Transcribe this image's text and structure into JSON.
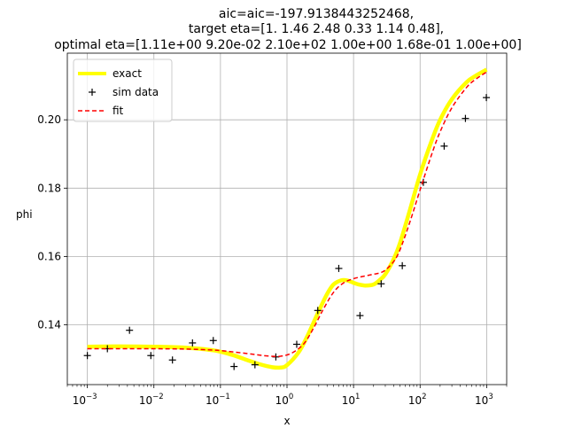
{
  "chart_data": {
    "type": "line",
    "title_lines": [
      "aic=aic=-197.9138443252468,",
      "target eta=[1.   1.46 2.48 0.33 1.14 0.48],",
      "optimal eta=[1.11e+00 9.20e-02 2.10e+02 1.00e+00 1.68e-01 1.00e+00]"
    ],
    "xlabel": "x",
    "ylabel": "phi",
    "x_scale": "log",
    "xlim": [
      0.0005,
      2000
    ],
    "ylim": [
      0.1225,
      0.2195
    ],
    "grid": true,
    "legend_position": "upper-left",
    "x_ticks": [
      {
        "value": 0.001,
        "base": "10",
        "exp": "−3"
      },
      {
        "value": 0.01,
        "base": "10",
        "exp": "−2"
      },
      {
        "value": 0.1,
        "base": "10",
        "exp": "−1"
      },
      {
        "value": 1,
        "base": "10",
        "exp": "0"
      },
      {
        "value": 10,
        "base": "10",
        "exp": "1"
      },
      {
        "value": 100,
        "base": "10",
        "exp": "2"
      },
      {
        "value": 1000,
        "base": "10",
        "exp": "3"
      }
    ],
    "y_ticks": [
      {
        "value": 0.14,
        "label": "0.14"
      },
      {
        "value": 0.16,
        "label": "0.16"
      },
      {
        "value": 0.18,
        "label": "0.18"
      },
      {
        "value": 0.2,
        "label": "0.20"
      }
    ],
    "series": [
      {
        "name": "exact",
        "style": "line",
        "color": "#ffff00",
        "x": [
          0.001,
          0.003,
          0.01,
          0.03,
          0.08,
          0.15,
          0.25,
          0.4,
          0.6,
          0.8,
          1.0,
          1.5,
          2,
          3,
          4,
          5,
          6.5,
          8,
          10,
          12,
          15,
          20,
          25,
          30,
          40,
          50,
          70,
          100,
          150,
          200,
          300,
          500,
          700,
          1000
        ],
        "y": [
          0.1336,
          0.1337,
          0.1336,
          0.1333,
          0.1325,
          0.1312,
          0.1297,
          0.1284,
          0.1276,
          0.1275,
          0.1282,
          0.132,
          0.1365,
          0.144,
          0.149,
          0.1518,
          0.153,
          0.153,
          0.1523,
          0.1518,
          0.1515,
          0.1518,
          0.1532,
          0.1548,
          0.1592,
          0.164,
          0.1735,
          0.184,
          0.194,
          0.2,
          0.206,
          0.211,
          0.213,
          0.2147
        ]
      },
      {
        "name": "sim data",
        "style": "markers",
        "marker": "+",
        "color": "#000000",
        "x": [
          0.001,
          0.002,
          0.0043,
          0.009,
          0.019,
          0.038,
          0.078,
          0.16,
          0.33,
          0.68,
          1.4,
          2.9,
          6.0,
          12.5,
          26,
          54,
          112,
          230,
          480,
          990
        ],
        "y": [
          0.131,
          0.133,
          0.1384,
          0.131,
          0.1297,
          0.1347,
          0.1354,
          0.1278,
          0.1283,
          0.1306,
          0.1343,
          0.1442,
          0.1565,
          0.1427,
          0.152,
          0.1573,
          0.1817,
          0.1923,
          0.2004,
          0.2065
        ]
      },
      {
        "name": "fit",
        "style": "dashed",
        "color": "#ff0000",
        "x": [
          0.001,
          0.003,
          0.01,
          0.03,
          0.08,
          0.15,
          0.3,
          0.5,
          0.8,
          1.2,
          1.8,
          2.5,
          3.5,
          5,
          7,
          10,
          15,
          20,
          25,
          30,
          40,
          50,
          70,
          100,
          150,
          200,
          300,
          500,
          700,
          1000
        ],
        "y": [
          0.133,
          0.133,
          0.133,
          0.1329,
          0.1326,
          0.1321,
          0.1314,
          0.1309,
          0.1308,
          0.1318,
          0.1345,
          0.139,
          0.1445,
          0.1495,
          0.1522,
          0.1535,
          0.1543,
          0.1548,
          0.1552,
          0.156,
          0.1585,
          0.162,
          0.17,
          0.1795,
          0.19,
          0.1965,
          0.2035,
          0.2095,
          0.212,
          0.214
        ]
      }
    ]
  }
}
